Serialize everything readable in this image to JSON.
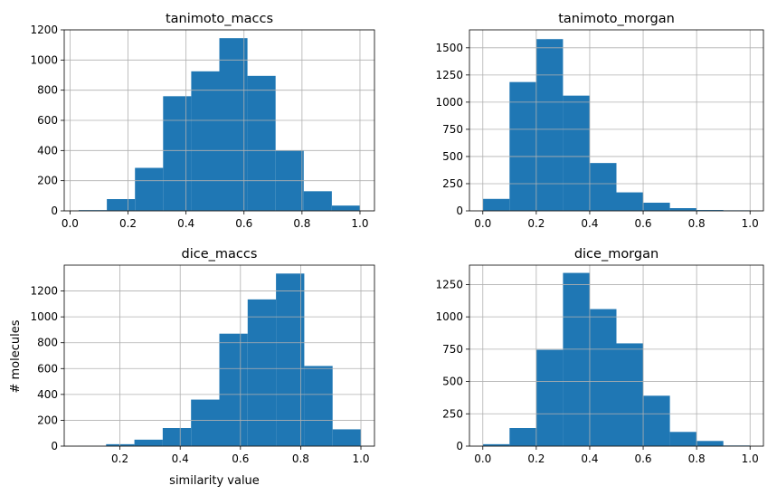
{
  "figure": {
    "ylabel": "# molecules",
    "xlabel": "similarity value",
    "bar_color": "#1f77b4",
    "grid": true
  },
  "chart_data": [
    {
      "type": "bar",
      "title": "tanimoto_maccs",
      "xlim": [
        -0.02,
        1.05
      ],
      "ylim": [
        0,
        1200
      ],
      "xticks": [
        0.0,
        0.2,
        0.4,
        0.6,
        0.8,
        1.0
      ],
      "yticks": [
        0,
        200,
        400,
        600,
        800,
        1000,
        1200
      ],
      "bins": [
        {
          "x0": 0.03,
          "x1": 0.127,
          "count": 5
        },
        {
          "x0": 0.127,
          "x1": 0.224,
          "count": 78
        },
        {
          "x0": 0.224,
          "x1": 0.321,
          "count": 285
        },
        {
          "x0": 0.321,
          "x1": 0.418,
          "count": 760
        },
        {
          "x0": 0.418,
          "x1": 0.515,
          "count": 925
        },
        {
          "x0": 0.515,
          "x1": 0.612,
          "count": 1145
        },
        {
          "x0": 0.612,
          "x1": 0.709,
          "count": 895
        },
        {
          "x0": 0.709,
          "x1": 0.806,
          "count": 400
        },
        {
          "x0": 0.806,
          "x1": 0.903,
          "count": 130
        },
        {
          "x0": 0.903,
          "x1": 1.0,
          "count": 35
        }
      ]
    },
    {
      "type": "bar",
      "title": "tanimoto_morgan",
      "xlim": [
        -0.05,
        1.05
      ],
      "ylim": [
        0,
        1665
      ],
      "xticks": [
        0.0,
        0.2,
        0.4,
        0.6,
        0.8,
        1.0
      ],
      "yticks": [
        0,
        250,
        500,
        750,
        1000,
        1250,
        1500
      ],
      "bins": [
        {
          "x0": 0.0,
          "x1": 0.1,
          "count": 110
        },
        {
          "x0": 0.1,
          "x1": 0.2,
          "count": 1185
        },
        {
          "x0": 0.2,
          "x1": 0.3,
          "count": 1580
        },
        {
          "x0": 0.3,
          "x1": 0.4,
          "count": 1060
        },
        {
          "x0": 0.4,
          "x1": 0.5,
          "count": 440
        },
        {
          "x0": 0.5,
          "x1": 0.6,
          "count": 170
        },
        {
          "x0": 0.6,
          "x1": 0.7,
          "count": 75
        },
        {
          "x0": 0.7,
          "x1": 0.8,
          "count": 25
        },
        {
          "x0": 0.8,
          "x1": 0.9,
          "count": 8
        },
        {
          "x0": 0.9,
          "x1": 1.0,
          "count": 5
        }
      ]
    },
    {
      "type": "bar",
      "title": "dice_maccs",
      "xlim": [
        0.015,
        1.045
      ],
      "ylim": [
        0,
        1400
      ],
      "xticks": [
        0.2,
        0.4,
        0.6,
        0.8,
        1.0
      ],
      "yticks": [
        0,
        200,
        400,
        600,
        800,
        1000,
        1200
      ],
      "bins": [
        {
          "x0": 0.06,
          "x1": 0.154,
          "count": 2
        },
        {
          "x0": 0.154,
          "x1": 0.248,
          "count": 15
        },
        {
          "x0": 0.248,
          "x1": 0.342,
          "count": 50
        },
        {
          "x0": 0.342,
          "x1": 0.436,
          "count": 140
        },
        {
          "x0": 0.436,
          "x1": 0.53,
          "count": 360
        },
        {
          "x0": 0.53,
          "x1": 0.624,
          "count": 870
        },
        {
          "x0": 0.624,
          "x1": 0.718,
          "count": 1135
        },
        {
          "x0": 0.718,
          "x1": 0.812,
          "count": 1335
        },
        {
          "x0": 0.812,
          "x1": 0.906,
          "count": 620
        },
        {
          "x0": 0.906,
          "x1": 1.0,
          "count": 130
        }
      ]
    },
    {
      "type": "bar",
      "title": "dice_morgan",
      "xlim": [
        -0.05,
        1.05
      ],
      "ylim": [
        0,
        1400
      ],
      "xticks": [
        0.0,
        0.2,
        0.4,
        0.6,
        0.8,
        1.0
      ],
      "yticks": [
        0,
        250,
        500,
        750,
        1000,
        1250
      ],
      "bins": [
        {
          "x0": 0.0,
          "x1": 0.1,
          "count": 15
        },
        {
          "x0": 0.1,
          "x1": 0.2,
          "count": 140
        },
        {
          "x0": 0.2,
          "x1": 0.3,
          "count": 745
        },
        {
          "x0": 0.3,
          "x1": 0.4,
          "count": 1340
        },
        {
          "x0": 0.4,
          "x1": 0.5,
          "count": 1060
        },
        {
          "x0": 0.5,
          "x1": 0.6,
          "count": 795
        },
        {
          "x0": 0.6,
          "x1": 0.7,
          "count": 390
        },
        {
          "x0": 0.7,
          "x1": 0.8,
          "count": 110
        },
        {
          "x0": 0.8,
          "x1": 0.9,
          "count": 40
        },
        {
          "x0": 0.9,
          "x1": 1.0,
          "count": 5
        }
      ]
    }
  ]
}
